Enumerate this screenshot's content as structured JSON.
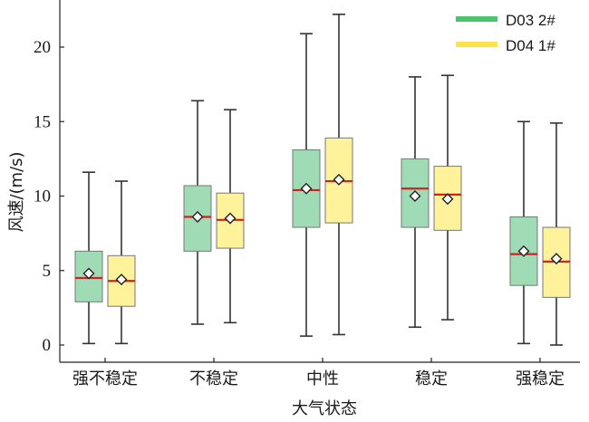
{
  "chart_data": {
    "type": "boxplot",
    "xlabel": "大气状态",
    "ylabel": "风速/(m/s)",
    "categories": [
      "强不稳定",
      "不稳定",
      "中性",
      "稳定",
      "强稳定"
    ],
    "ylim": [
      -1,
      24
    ],
    "yticks": [
      0,
      5,
      10,
      15,
      20
    ],
    "legend_position": "top-right",
    "colors": {
      "D03 2#": "#9fdcb5",
      "D04 1#": "#fef29a",
      "median": "#d62020",
      "whisker": "#333333"
    },
    "series": [
      {
        "name": "D03 2#",
        "legend_color": "#4cc46e",
        "boxes": [
          {
            "min": 0.1,
            "q1": 2.9,
            "median": 4.5,
            "q3": 6.3,
            "max": 11.6,
            "mean": 4.8
          },
          {
            "min": 1.4,
            "q1": 6.3,
            "median": 8.6,
            "q3": 10.7,
            "max": 16.4,
            "mean": 8.6
          },
          {
            "min": 0.6,
            "q1": 7.9,
            "median": 10.4,
            "q3": 13.1,
            "max": 20.9,
            "mean": 10.5
          },
          {
            "min": 1.2,
            "q1": 7.9,
            "median": 10.5,
            "q3": 12.5,
            "max": 18.0,
            "mean": 10.0
          },
          {
            "min": 0.1,
            "q1": 4.0,
            "median": 6.1,
            "q3": 8.6,
            "max": 15.0,
            "mean": 6.3
          }
        ]
      },
      {
        "name": "D04 1#",
        "legend_color": "#fde24a",
        "boxes": [
          {
            "min": 0.1,
            "q1": 2.6,
            "median": 4.3,
            "q3": 6.0,
            "max": 11.0,
            "mean": 4.4
          },
          {
            "min": 1.5,
            "q1": 6.5,
            "median": 8.4,
            "q3": 10.2,
            "max": 15.8,
            "mean": 8.5
          },
          {
            "min": 0.7,
            "q1": 8.2,
            "median": 11.0,
            "q3": 13.9,
            "max": 22.2,
            "mean": 11.1
          },
          {
            "min": 1.7,
            "q1": 7.7,
            "median": 10.1,
            "q3": 12.0,
            "max": 18.1,
            "mean": 9.8
          },
          {
            "min": 0.0,
            "q1": 3.2,
            "median": 5.6,
            "q3": 7.9,
            "max": 14.9,
            "mean": 5.8
          }
        ]
      }
    ]
  }
}
